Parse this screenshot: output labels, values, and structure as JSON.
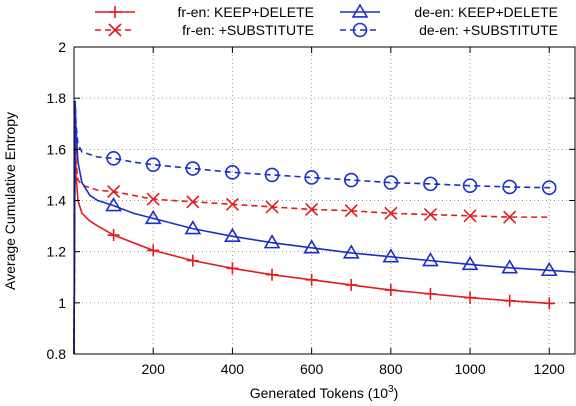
{
  "chart_data": {
    "type": "line",
    "xlabel": "Generated Tokens (10",
    "xlabel_sup": "3",
    "xlabel_end": ")",
    "ylabel": "Average Cumulative Entropy",
    "xlim": [
      0,
      1265
    ],
    "ylim": [
      0.8,
      2.0
    ],
    "x_ticks": [
      200,
      400,
      600,
      800,
      1000,
      1200
    ],
    "y_ticks": [
      0.8,
      1.0,
      1.2,
      1.4,
      1.6,
      1.8,
      2.0
    ],
    "y_tick_labels": [
      "0.8",
      "1",
      "1.2",
      "1.4",
      "1.6",
      "1.8",
      "2"
    ],
    "grid": true,
    "legend_placement": "top",
    "series": [
      {
        "name": "fr-en: KEEP+DELETE",
        "color": "#e41a1c",
        "dash": "solid",
        "marker": "plus",
        "marker_x": [
          100,
          200,
          300,
          400,
          500,
          600,
          700,
          800,
          900,
          1000,
          1100,
          1200
        ],
        "x": [
          0,
          3,
          5,
          10,
          20,
          40,
          60,
          100,
          150,
          200,
          300,
          400,
          500,
          600,
          700,
          800,
          900,
          1000,
          1100,
          1200,
          1210
        ],
        "y": [
          0.8,
          1.75,
          1.5,
          1.4,
          1.35,
          1.32,
          1.3,
          1.265,
          1.235,
          1.205,
          1.165,
          1.135,
          1.11,
          1.09,
          1.07,
          1.05,
          1.035,
          1.02,
          1.008,
          0.998,
          0.997
        ]
      },
      {
        "name": "fr-en: +SUBSTITUTE",
        "color": "#e41a1c",
        "dash": "dashed",
        "marker": "cross",
        "marker_x": [
          100,
          200,
          300,
          400,
          500,
          600,
          700,
          800,
          900,
          1000,
          1100
        ],
        "x": [
          0,
          3,
          5,
          10,
          20,
          40,
          60,
          100,
          150,
          200,
          300,
          400,
          500,
          600,
          700,
          800,
          900,
          1000,
          1100,
          1200
        ],
        "y": [
          0.8,
          1.75,
          1.55,
          1.48,
          1.46,
          1.45,
          1.44,
          1.435,
          1.42,
          1.405,
          1.395,
          1.385,
          1.375,
          1.365,
          1.36,
          1.35,
          1.345,
          1.34,
          1.335,
          1.335
        ]
      },
      {
        "name": "de-en: KEEP+DELETE",
        "color": "#1a2fc8",
        "dash": "solid",
        "marker": "triangle",
        "marker_x": [
          100,
          200,
          300,
          400,
          500,
          600,
          700,
          800,
          900,
          1000,
          1100,
          1200
        ],
        "x": [
          0,
          3,
          5,
          10,
          20,
          40,
          60,
          100,
          150,
          200,
          300,
          400,
          500,
          600,
          700,
          800,
          900,
          1000,
          1100,
          1200,
          1265
        ],
        "y": [
          0.8,
          1.78,
          1.68,
          1.55,
          1.47,
          1.42,
          1.4,
          1.38,
          1.35,
          1.33,
          1.29,
          1.26,
          1.235,
          1.215,
          1.195,
          1.18,
          1.165,
          1.15,
          1.137,
          1.127,
          1.12
        ]
      },
      {
        "name": "de-en: +SUBSTITUTE",
        "color": "#1a2fc8",
        "dash": "dashed",
        "marker": "circle",
        "marker_x": [
          100,
          200,
          300,
          400,
          500,
          600,
          700,
          800,
          900,
          1000,
          1100,
          1200
        ],
        "x": [
          0,
          3,
          5,
          10,
          20,
          40,
          60,
          100,
          150,
          200,
          300,
          400,
          500,
          600,
          700,
          800,
          900,
          1000,
          1100,
          1200,
          1210
        ],
        "y": [
          0.8,
          1.79,
          1.7,
          1.62,
          1.59,
          1.58,
          1.57,
          1.565,
          1.55,
          1.54,
          1.525,
          1.51,
          1.5,
          1.49,
          1.48,
          1.47,
          1.465,
          1.458,
          1.453,
          1.45,
          1.45
        ]
      }
    ]
  }
}
